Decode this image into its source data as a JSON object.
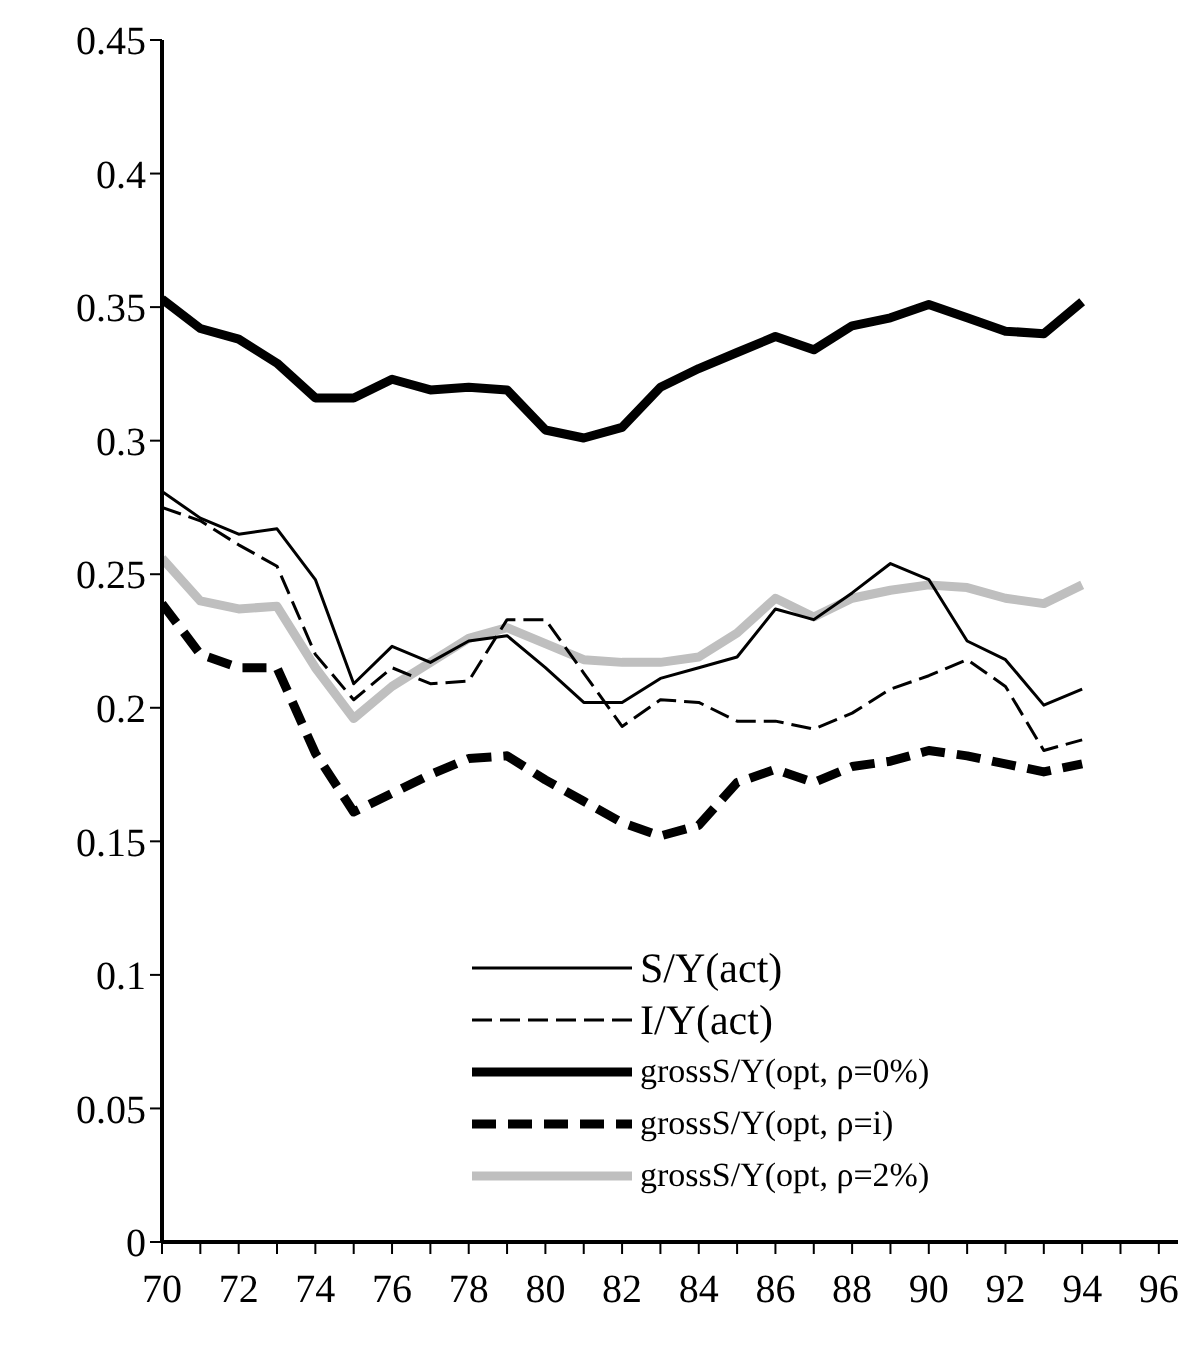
{
  "chart_data": {
    "type": "line",
    "x": [
      70,
      71,
      72,
      73,
      74,
      75,
      76,
      77,
      78,
      79,
      80,
      81,
      82,
      83,
      84,
      85,
      86,
      87,
      88,
      89,
      90,
      91,
      92,
      93,
      94
    ],
    "series": [
      {
        "name": "S/Y(act)",
        "color": "#000000",
        "line_style": "solid",
        "values": [
          0.281,
          0.271,
          0.265,
          0.267,
          0.248,
          0.209,
          0.223,
          0.217,
          0.225,
          0.227,
          0.215,
          0.202,
          0.202,
          0.211,
          0.215,
          0.219,
          0.237,
          0.233,
          0.243,
          0.254,
          0.248,
          0.225,
          0.218,
          0.201,
          0.207
        ]
      },
      {
        "name": "I/Y(act)",
        "color": "#000000",
        "line_style": "dashed",
        "values": [
          0.275,
          0.27,
          0.261,
          0.253,
          0.22,
          0.203,
          0.215,
          0.209,
          0.21,
          0.233,
          0.233,
          0.213,
          0.193,
          0.203,
          0.202,
          0.195,
          0.195,
          0.192,
          0.198,
          0.207,
          0.212,
          0.218,
          0.208,
          0.184,
          0.188
        ]
      },
      {
        "name": "grossS/Y(opt, ρ=0%)",
        "color": "#000000",
        "line_style": "solid",
        "values": [
          0.353,
          0.342,
          0.338,
          0.329,
          0.316,
          0.316,
          0.323,
          0.319,
          0.32,
          0.319,
          0.304,
          0.301,
          0.305,
          0.32,
          0.327,
          0.333,
          0.339,
          0.334,
          0.343,
          0.346,
          0.351,
          0.346,
          0.341,
          0.34,
          0.352
        ]
      },
      {
        "name": "grossS/Y(opt, ρ=i)",
        "color": "#000000",
        "line_style": "dashed",
        "values": [
          0.239,
          0.22,
          0.215,
          0.215,
          0.183,
          0.161,
          0.168,
          0.175,
          0.181,
          0.182,
          0.173,
          0.165,
          0.157,
          0.152,
          0.156,
          0.172,
          0.177,
          0.172,
          0.178,
          0.18,
          0.184,
          0.182,
          0.179,
          0.176,
          0.179
        ]
      },
      {
        "name": "grossS/Y(opt, ρ=2%)",
        "color": "#bfbfbf",
        "line_style": "solid",
        "values": [
          0.256,
          0.24,
          0.237,
          0.238,
          0.215,
          0.196,
          0.208,
          0.217,
          0.226,
          0.23,
          0.224,
          0.218,
          0.217,
          0.217,
          0.219,
          0.228,
          0.241,
          0.234,
          0.241,
          0.244,
          0.246,
          0.245,
          0.241,
          0.239,
          0.246
        ]
      }
    ],
    "xlim": [
      70,
      96.5
    ],
    "xticks": [
      70,
      {
        "value": 71,
        "label": null
      },
      72,
      {
        "value": 73,
        "label": null
      },
      74,
      {
        "value": 75,
        "label": null
      },
      76,
      {
        "value": 77,
        "label": null
      },
      78,
      {
        "value": 79,
        "label": null
      },
      80,
      {
        "value": 81,
        "label": null
      },
      82,
      {
        "value": 83,
        "label": null
      },
      84,
      {
        "value": 85,
        "label": null
      },
      86,
      {
        "value": 87,
        "label": null
      },
      88,
      {
        "value": 89,
        "label": null
      },
      90,
      {
        "value": 91,
        "label": null
      },
      92,
      {
        "value": 93,
        "label": null
      },
      94,
      {
        "value": 95,
        "label": null
      },
      96
    ],
    "ylim": [
      0,
      0.45
    ],
    "yticks": [
      0,
      0.05,
      0.1,
      0.15,
      0.2,
      0.25,
      0.3,
      0.35,
      0.4,
      0.45
    ],
    "grid": false,
    "legend": "bottom",
    "marker": "none"
  }
}
